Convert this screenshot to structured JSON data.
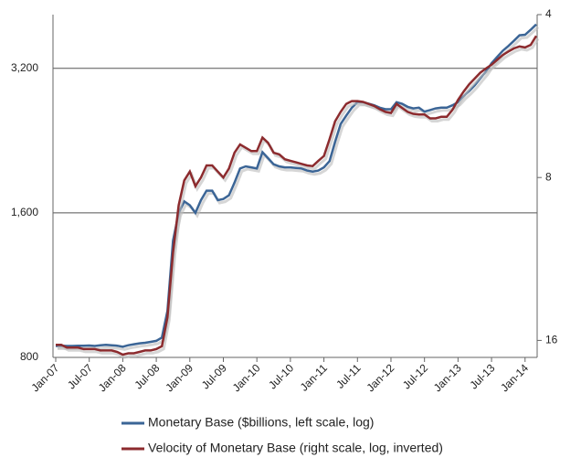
{
  "chart_data": {
    "type": "line",
    "categories": [
      "Jan-07",
      null,
      null,
      null,
      null,
      null,
      "Jul-07",
      null,
      null,
      null,
      null,
      null,
      "Jan-08",
      null,
      null,
      null,
      null,
      null,
      "Jul-08",
      null,
      null,
      null,
      null,
      null,
      "Jan-09",
      null,
      null,
      null,
      null,
      null,
      "Jul-09",
      null,
      null,
      null,
      null,
      null,
      "Jan-10",
      null,
      null,
      null,
      null,
      null,
      "Jul-10",
      null,
      null,
      null,
      null,
      null,
      "Jan-11",
      null,
      null,
      null,
      null,
      null,
      "Jul-11",
      null,
      null,
      null,
      null,
      null,
      "Jan-12",
      null,
      null,
      null,
      null,
      null,
      "Jul-12",
      null,
      null,
      null,
      null,
      null,
      "Jan-13",
      null,
      null,
      null,
      null,
      null,
      "Jul-13",
      null,
      null,
      null,
      null,
      null,
      "Jan-14",
      null,
      null
    ],
    "series": [
      {
        "name": "Monetary Base ($billions, left scale, log)",
        "color": "#3b6596",
        "axis": "y",
        "values": [
          845,
          846,
          845,
          845,
          846,
          846,
          847,
          845,
          848,
          850,
          848,
          846,
          842,
          848,
          852,
          856,
          858,
          862,
          866,
          880,
          1000,
          1400,
          1600,
          1690,
          1660,
          1600,
          1700,
          1780,
          1780,
          1700,
          1710,
          1740,
          1850,
          1980,
          2000,
          1990,
          1980,
          2140,
          2080,
          2020,
          2000,
          1990,
          1990,
          1985,
          1980,
          1960,
          1950,
          1960,
          1990,
          2050,
          2250,
          2450,
          2550,
          2650,
          2720,
          2720,
          2700,
          2680,
          2650,
          2630,
          2630,
          2720,
          2700,
          2660,
          2640,
          2650,
          2600,
          2620,
          2640,
          2650,
          2650,
          2680,
          2720,
          2800,
          2870,
          2950,
          3050,
          3150,
          3280,
          3380,
          3480,
          3560,
          3650,
          3750,
          3760,
          3850,
          3950
        ]
      },
      {
        "name": "Velocity of Monetary Base (right scale, log, inverted)",
        "color": "#8c2b2e",
        "axis": "y2",
        "values": [
          16.3,
          16.3,
          16.5,
          16.5,
          16.5,
          16.6,
          16.6,
          16.6,
          16.7,
          16.7,
          16.7,
          16.8,
          17.0,
          16.9,
          16.9,
          16.8,
          16.7,
          16.7,
          16.6,
          16.4,
          14.5,
          11.0,
          9.0,
          8.1,
          7.8,
          8.3,
          8.0,
          7.6,
          7.6,
          7.8,
          8.0,
          7.7,
          7.2,
          6.95,
          7.05,
          7.15,
          7.15,
          6.75,
          6.9,
          7.2,
          7.25,
          7.4,
          7.45,
          7.5,
          7.55,
          7.6,
          7.62,
          7.45,
          7.3,
          6.8,
          6.3,
          6.05,
          5.85,
          5.78,
          5.78,
          5.8,
          5.85,
          5.9,
          5.98,
          6.05,
          6.08,
          5.85,
          5.95,
          6.05,
          6.1,
          6.12,
          6.12,
          6.22,
          6.22,
          6.18,
          6.18,
          6.0,
          5.75,
          5.55,
          5.38,
          5.25,
          5.12,
          5.03,
          4.95,
          4.85,
          4.75,
          4.68,
          4.62,
          4.58,
          4.6,
          4.55,
          4.38
        ]
      }
    ],
    "ylim": [
      800,
      4140
    ],
    "yticks": [
      800,
      {
        "value": 1600,
        "label": "1,600"
      },
      {
        "value": 3200,
        "label": "3,200"
      }
    ],
    "y2lim": [
      4,
      17.2
    ],
    "y2ticks": [
      4,
      8,
      16
    ],
    "log_scale": true,
    "y2_inverted": true,
    "grid": true,
    "legend": "bottom"
  }
}
